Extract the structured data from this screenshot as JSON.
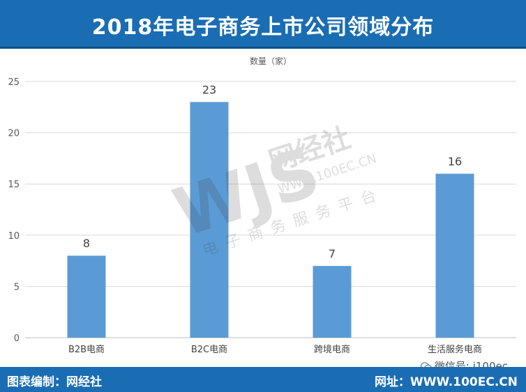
{
  "header": {
    "title": "2018年电子商务上市公司领域分布"
  },
  "chart_data": {
    "type": "bar",
    "title": "2018年电子商务上市公司领域分布",
    "ylabel": "数量（家）",
    "xlabel": "",
    "categories": [
      "B2B电商",
      "B2C电商",
      "跨境电商",
      "生活服务电商"
    ],
    "values": [
      8,
      23,
      7,
      16
    ],
    "ylim": [
      0,
      25
    ],
    "yticks": [
      0,
      5,
      10,
      15,
      20,
      25
    ],
    "grid": true,
    "bar_color": "#5b9bd5"
  },
  "watermark": {
    "logo": "WJS",
    "brand": "网经社",
    "url": "WWW.100EC.CN",
    "slogan": "电子商务服务平台"
  },
  "wechat": {
    "text": "微信号: i100ec"
  },
  "footer": {
    "left_text": "图表编制：网经社",
    "right_text": "网址：WWW.100EC.CN"
  },
  "colors": {
    "header_bg": "#1a6db3",
    "bar": "#5b9bd5",
    "grid": "#d9d9d9"
  }
}
